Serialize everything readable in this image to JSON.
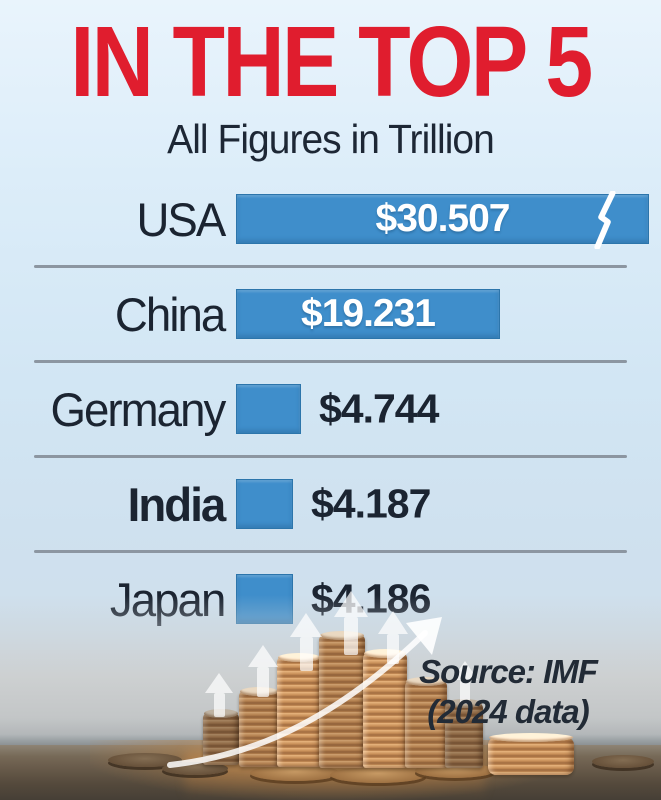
{
  "title": "IN THE TOP 5",
  "subtitle": "All Figures in Trillion",
  "source": {
    "line1": "Source: IMF",
    "line2": "(2024 data)"
  },
  "colors": {
    "title_red": "#e01d2e",
    "text_navy": "#1b2431",
    "bar_blue": "#3f8ecb",
    "bar_value_white": "#ffffff",
    "divider_gray": "#8c96a1",
    "background_light_blue": "#d9eaf7"
  },
  "decor": {
    "photo": "coin-stacks-with-growth-arrows-photo",
    "icons": [
      "lightning-break-icon",
      "up-arrow-icon",
      "growth-arrow-icon"
    ]
  },
  "chart_data": {
    "type": "bar",
    "orientation": "horizontal",
    "title": "IN THE TOP 5",
    "subtitle": "All Figures in Trillion",
    "unit": "USD Trillion",
    "categories": [
      "USA",
      "China",
      "Germany",
      "India",
      "Japan"
    ],
    "values": [
      30.507,
      19.231,
      4.744,
      4.187,
      4.186
    ],
    "value_labels": [
      "$30.507",
      "$19.231",
      "$4.744",
      "$4.187",
      "$4.186"
    ],
    "bar_color": "#3f8ecb",
    "highlighted_category": "India",
    "truncated_bar_category": "USA",
    "grid": false,
    "legend_position": "none",
    "source": "Source: IMF (2024 data)"
  }
}
